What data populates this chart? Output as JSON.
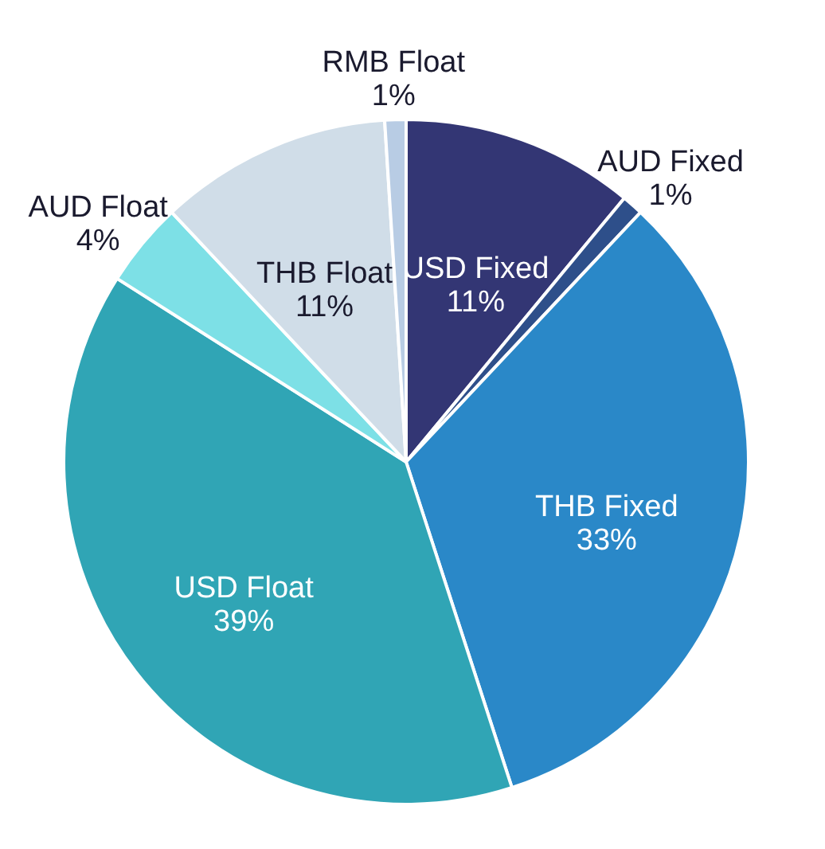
{
  "chart_data": {
    "type": "pie",
    "categories": [
      "USD Fixed",
      "AUD Fixed",
      "THB Fixed",
      "USD Float",
      "AUD Float",
      "THB Float",
      "RMB Float"
    ],
    "values": [
      11,
      1,
      33,
      39,
      4,
      11,
      1
    ],
    "colors": [
      "#333674",
      "#2e4f8a",
      "#2a88c8",
      "#30a5b5",
      "#7de0e6",
      "#d0dde8",
      "#b8cce4"
    ],
    "value_labels": [
      "11%",
      "1%",
      "33%",
      "39%",
      "4%",
      "11%",
      "1%"
    ]
  }
}
